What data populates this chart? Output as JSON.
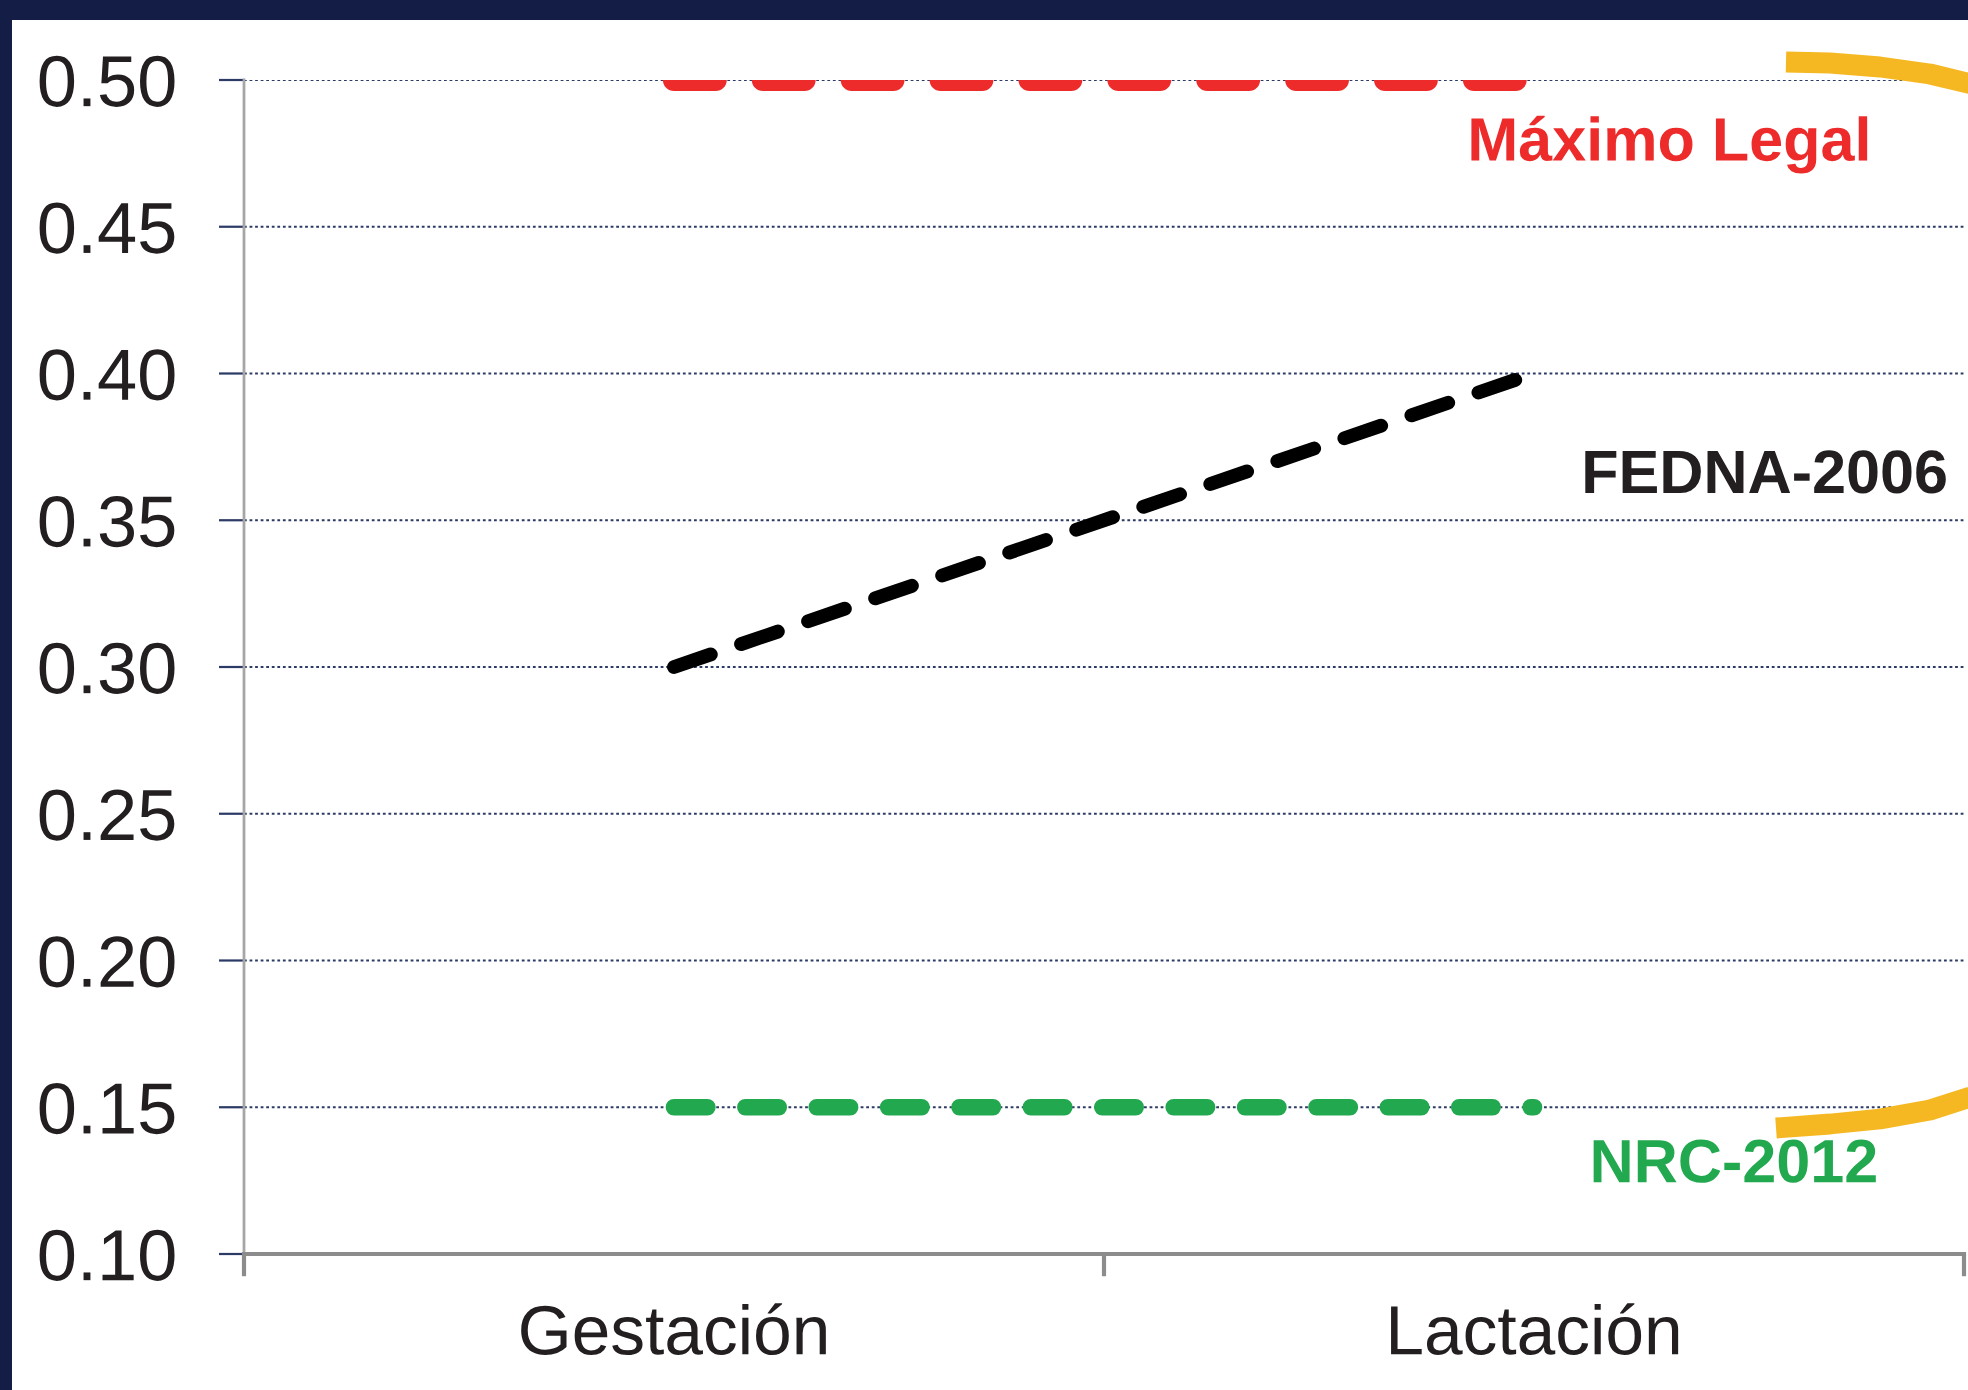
{
  "chart_data": {
    "type": "line",
    "categories": [
      "Gestación",
      "Lactación"
    ],
    "series": [
      {
        "name": "Máximo Legal",
        "color": "#ee2b2b",
        "values": [
          0.5,
          0.5
        ]
      },
      {
        "name": "FEDNA-2006",
        "color": "#000000",
        "values": [
          0.3,
          0.4
        ]
      },
      {
        "name": "NRC-2012",
        "color": "#22a84e",
        "values": [
          0.15,
          0.15
        ]
      }
    ],
    "ylim": [
      0.1,
      0.5
    ],
    "yticks": [
      {
        "value": 0.1,
        "label": "0.10"
      },
      0.15,
      {
        "value": 0.2,
        "label": "0.20"
      },
      0.25,
      {
        "value": 0.3,
        "label": "0.30"
      },
      0.35,
      {
        "value": 0.4,
        "label": "0.40"
      },
      0.45,
      {
        "value": 0.5,
        "label": "0.50"
      }
    ],
    "grid": "y",
    "line_style": "dashed"
  }
}
